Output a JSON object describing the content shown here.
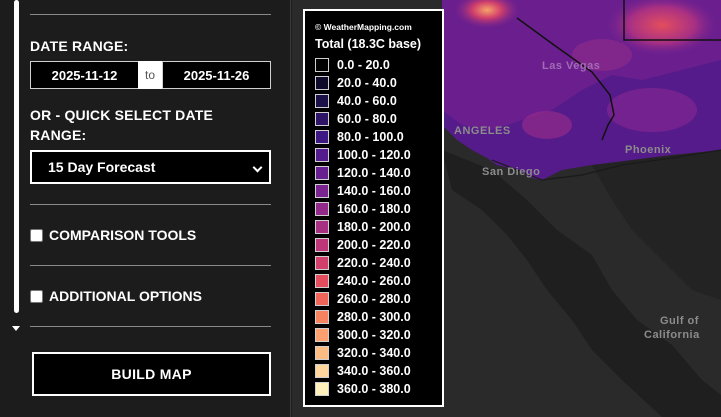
{
  "sidebar": {
    "date_range_label": "DATE RANGE:",
    "start_date": "2025-11-12",
    "date_separator": "to",
    "end_date": "2025-11-26",
    "quick_select_label_line1": "OR - QUICK SELECT DATE",
    "quick_select_label_line2": "RANGE:",
    "quick_select_value": "15 Day Forecast",
    "comparison_tools_label": "COMPARISON TOOLS",
    "comparison_tools_checked": false,
    "additional_options_label": "ADDITIONAL OPTIONS",
    "additional_options_checked": false,
    "build_map_label": "BUILD MAP"
  },
  "legend": {
    "credit": "© WeatherMapping.com",
    "title": "Total (18.3C base)",
    "items": [
      {
        "label": "0.0 - 20.0",
        "color": "#000000"
      },
      {
        "label": "20.0 - 40.0",
        "color": "#0e0a2a"
      },
      {
        "label": "40.0 - 60.0",
        "color": "#1c1048"
      },
      {
        "label": "60.0 - 80.0",
        "color": "#2d1467"
      },
      {
        "label": "80.0 - 100.0",
        "color": "#3e1882"
      },
      {
        "label": "100.0 - 120.0",
        "color": "#541c8c"
      },
      {
        "label": "120.0 - 140.0",
        "color": "#671f8f"
      },
      {
        "label": "140.0 - 160.0",
        "color": "#7a2490"
      },
      {
        "label": "160.0 - 180.0",
        "color": "#932a8a"
      },
      {
        "label": "180.0 - 200.0",
        "color": "#a83083"
      },
      {
        "label": "200.0 - 220.0",
        "color": "#bd3678"
      },
      {
        "label": "220.0 - 240.0",
        "color": "#d13f6b"
      },
      {
        "label": "240.0 - 260.0",
        "color": "#e34d5e"
      },
      {
        "label": "260.0 - 280.0",
        "color": "#f0645a"
      },
      {
        "label": "280.0 - 300.0",
        "color": "#f7825f"
      },
      {
        "label": "300.0 - 320.0",
        "color": "#fba06e"
      },
      {
        "label": "320.0 - 340.0",
        "color": "#fdbb84"
      },
      {
        "label": "340.0 - 360.0",
        "color": "#fed59c"
      },
      {
        "label": "360.0 - 380.0",
        "color": "#fdf0bc"
      }
    ]
  },
  "map": {
    "places": [
      "ANGELES",
      "San Diego",
      "Phoenix",
      "Las Vegas",
      "Gulf of",
      "California"
    ]
  }
}
